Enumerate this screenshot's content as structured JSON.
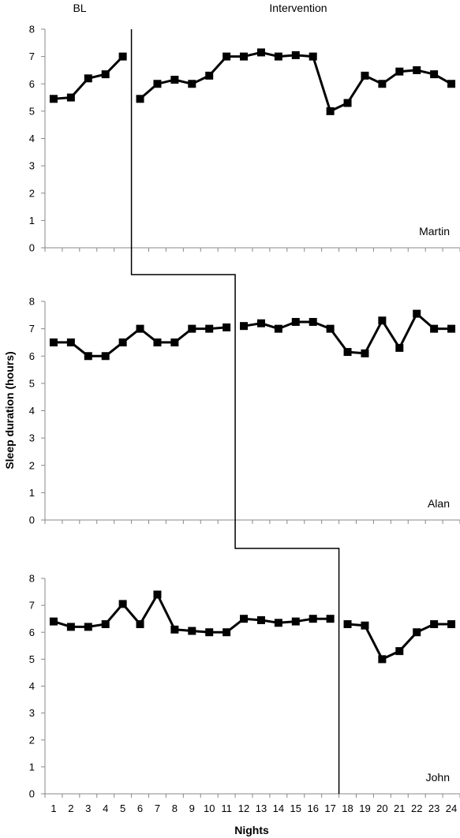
{
  "chart_data": {
    "type": "line",
    "phase_labels": [
      "BL",
      "Intervention"
    ],
    "xlabel": "Nights",
    "ylabel": "Sleep duration (hours)",
    "x": [
      1,
      2,
      3,
      4,
      5,
      6,
      7,
      8,
      9,
      10,
      11,
      12,
      13,
      14,
      15,
      16,
      17,
      18,
      19,
      20,
      21,
      22,
      23,
      24
    ],
    "ylim": [
      0,
      8
    ],
    "yticks": [
      0,
      1,
      2,
      3,
      4,
      5,
      6,
      7,
      8
    ],
    "grid": false,
    "panels": [
      {
        "name": "Martin",
        "phase_change_after": 5,
        "values": [
          5.45,
          5.5,
          6.2,
          6.35,
          7.0,
          5.45,
          6.0,
          6.15,
          6.0,
          6.3,
          7.0,
          7.0,
          7.15,
          7.0,
          7.05,
          7.0,
          5.0,
          5.3,
          6.3,
          6.0,
          6.45,
          6.5,
          6.35,
          6.0
        ]
      },
      {
        "name": "Alan",
        "phase_change_after": 11,
        "values": [
          6.5,
          6.5,
          6.0,
          6.0,
          6.5,
          7.0,
          6.5,
          6.5,
          7.0,
          7.0,
          7.05,
          7.1,
          7.2,
          7.0,
          7.25,
          7.25,
          7.0,
          6.15,
          6.1,
          7.3,
          6.3,
          7.55,
          7.0,
          7.0
        ]
      },
      {
        "name": "John",
        "phase_change_after": 17,
        "values": [
          6.4,
          6.2,
          6.2,
          6.3,
          7.05,
          6.3,
          7.4,
          6.1,
          6.05,
          6.0,
          6.0,
          6.5,
          6.45,
          6.35,
          6.4,
          6.5,
          6.5,
          6.3,
          6.25,
          5.0,
          5.3,
          6.0,
          6.3,
          6.3
        ]
      }
    ]
  }
}
